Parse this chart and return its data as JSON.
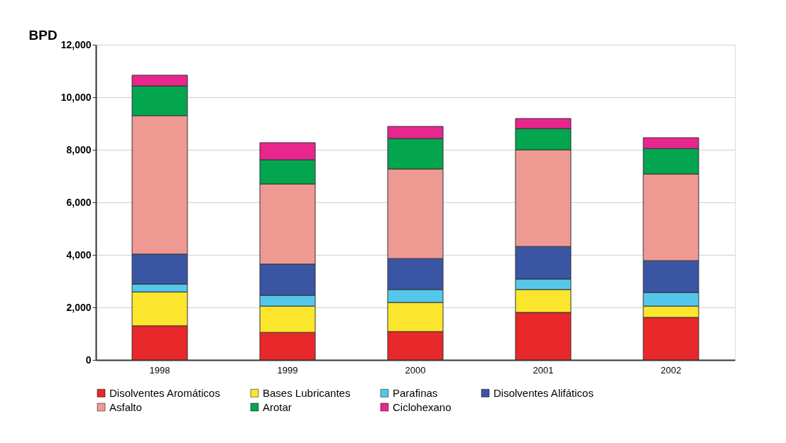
{
  "chart_data": {
    "type": "bar",
    "stacked": true,
    "ylabel": "BPD",
    "categories": [
      "1998",
      "1999",
      "2000",
      "2001",
      "2002"
    ],
    "series": [
      {
        "name": "Disolventes Aromáticos",
        "color": "#e8282a",
        "values": [
          1300,
          1050,
          1080,
          1810,
          1620
        ]
      },
      {
        "name": "Bases Lubricantes",
        "color": "#fbe62d",
        "values": [
          1290,
          1000,
          1110,
          870,
          430
        ]
      },
      {
        "name": "Parafinas",
        "color": "#55c7ea",
        "values": [
          300,
          410,
          490,
          400,
          520
        ]
      },
      {
        "name": "Disolventes Alifáticos",
        "color": "#3a55a4",
        "values": [
          1140,
          1190,
          1180,
          1240,
          1210
        ]
      },
      {
        "name": "Asfalto",
        "color": "#ee9a93",
        "values": [
          5270,
          3050,
          3410,
          3680,
          3300
        ]
      },
      {
        "name": "Arotar",
        "color": "#04a54f",
        "values": [
          1130,
          920,
          1160,
          810,
          970
        ]
      },
      {
        "name": "Ciclohexano",
        "color": "#e9258e",
        "values": [
          410,
          650,
          460,
          380,
          410
        ]
      }
    ],
    "ylim": [
      0,
      12000
    ],
    "yticks": [
      0,
      {
        "value": 2000,
        "label": "2,000"
      },
      {
        "value": 4000,
        "label": "4,000"
      },
      {
        "value": 6000,
        "label": "6,000"
      },
      {
        "value": 8000,
        "label": "8,000"
      },
      {
        "value": 10000,
        "label": "10,000"
      },
      {
        "value": 12000,
        "label": "12,000"
      }
    ],
    "grid": "y",
    "legend": "bottom"
  }
}
